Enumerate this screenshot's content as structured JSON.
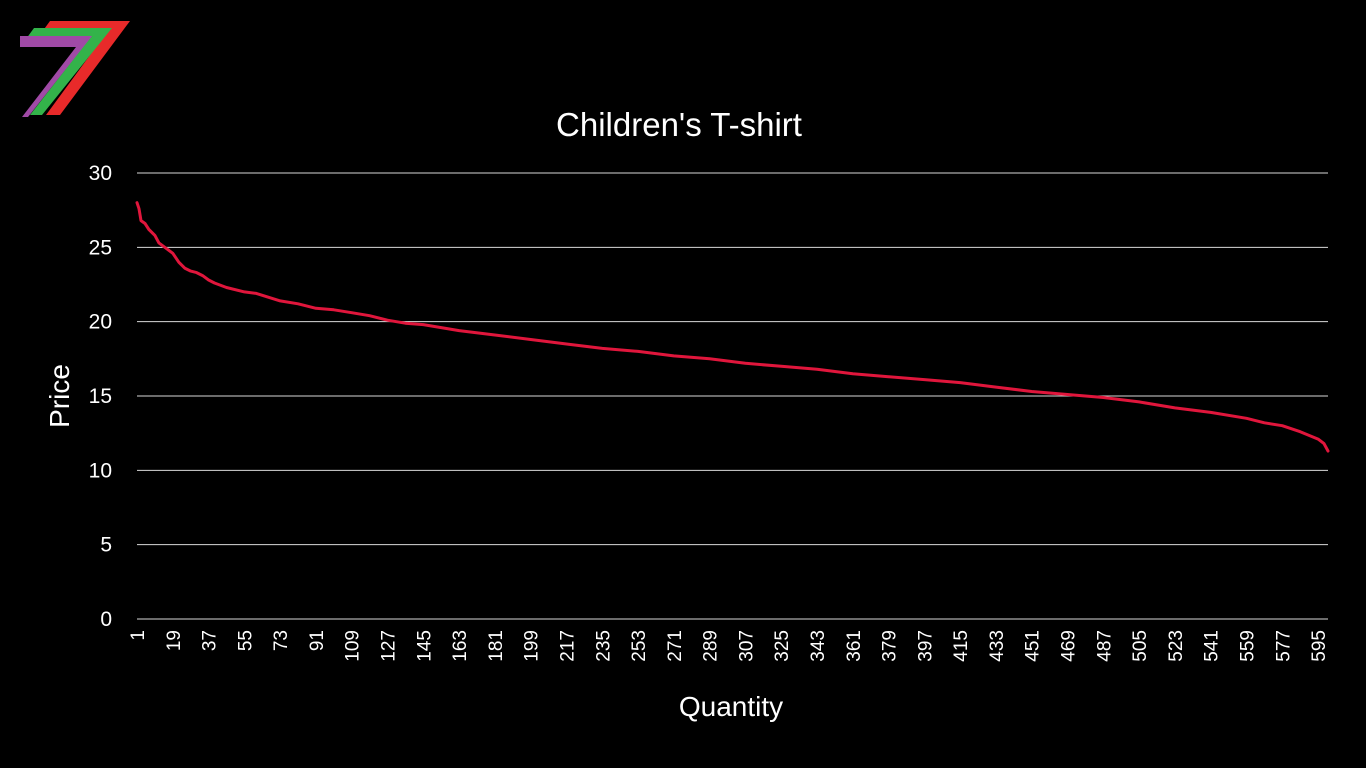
{
  "logo": {
    "name": "brand-7-logo",
    "colors": [
      "#a04aa6",
      "#33b34a",
      "#e82a2a"
    ]
  },
  "chart_data": {
    "type": "line",
    "title": "Children's T-shirt",
    "xlabel": "Quantity",
    "ylabel": "Price",
    "ylim": [
      0,
      30
    ],
    "yticks": [
      0,
      5,
      10,
      15,
      20,
      25,
      30
    ],
    "xlim": [
      1,
      600
    ],
    "xticks": [
      1,
      19,
      37,
      55,
      73,
      91,
      109,
      127,
      145,
      163,
      181,
      199,
      217,
      235,
      253,
      271,
      289,
      307,
      325,
      343,
      361,
      379,
      397,
      415,
      433,
      451,
      469,
      487,
      505,
      523,
      541,
      559,
      577,
      595
    ],
    "grid": true,
    "legend": "none",
    "series_color": "#e0163c",
    "gridline_color": "#d9d9d9",
    "series": [
      {
        "x": [
          1,
          2,
          3,
          5,
          7,
          10,
          12,
          14,
          16,
          19,
          22,
          25,
          28,
          31,
          34,
          37,
          40,
          46,
          55,
          61,
          73,
          82,
          91,
          100,
          109,
          118,
          127,
          136,
          145,
          154,
          163,
          181,
          199,
          217,
          235,
          253,
          271,
          289,
          307,
          325,
          343,
          361,
          379,
          397,
          415,
          433,
          451,
          469,
          487,
          505,
          523,
          541,
          559,
          568,
          577,
          586,
          595,
          598,
          600
        ],
        "y": [
          28.0,
          27.6,
          26.8,
          26.6,
          26.2,
          25.8,
          25.3,
          25.1,
          24.9,
          24.6,
          24.0,
          23.6,
          23.4,
          23.3,
          23.1,
          22.8,
          22.6,
          22.3,
          22.0,
          21.9,
          21.4,
          21.2,
          20.9,
          20.8,
          20.6,
          20.4,
          20.1,
          19.9,
          19.8,
          19.6,
          19.4,
          19.1,
          18.8,
          18.5,
          18.2,
          18.0,
          17.7,
          17.5,
          17.2,
          17.0,
          16.8,
          16.5,
          16.3,
          16.1,
          15.9,
          15.6,
          15.3,
          15.1,
          14.9,
          14.6,
          14.2,
          13.9,
          13.5,
          13.2,
          13.0,
          12.6,
          12.1,
          11.8,
          11.3
        ]
      }
    ]
  }
}
